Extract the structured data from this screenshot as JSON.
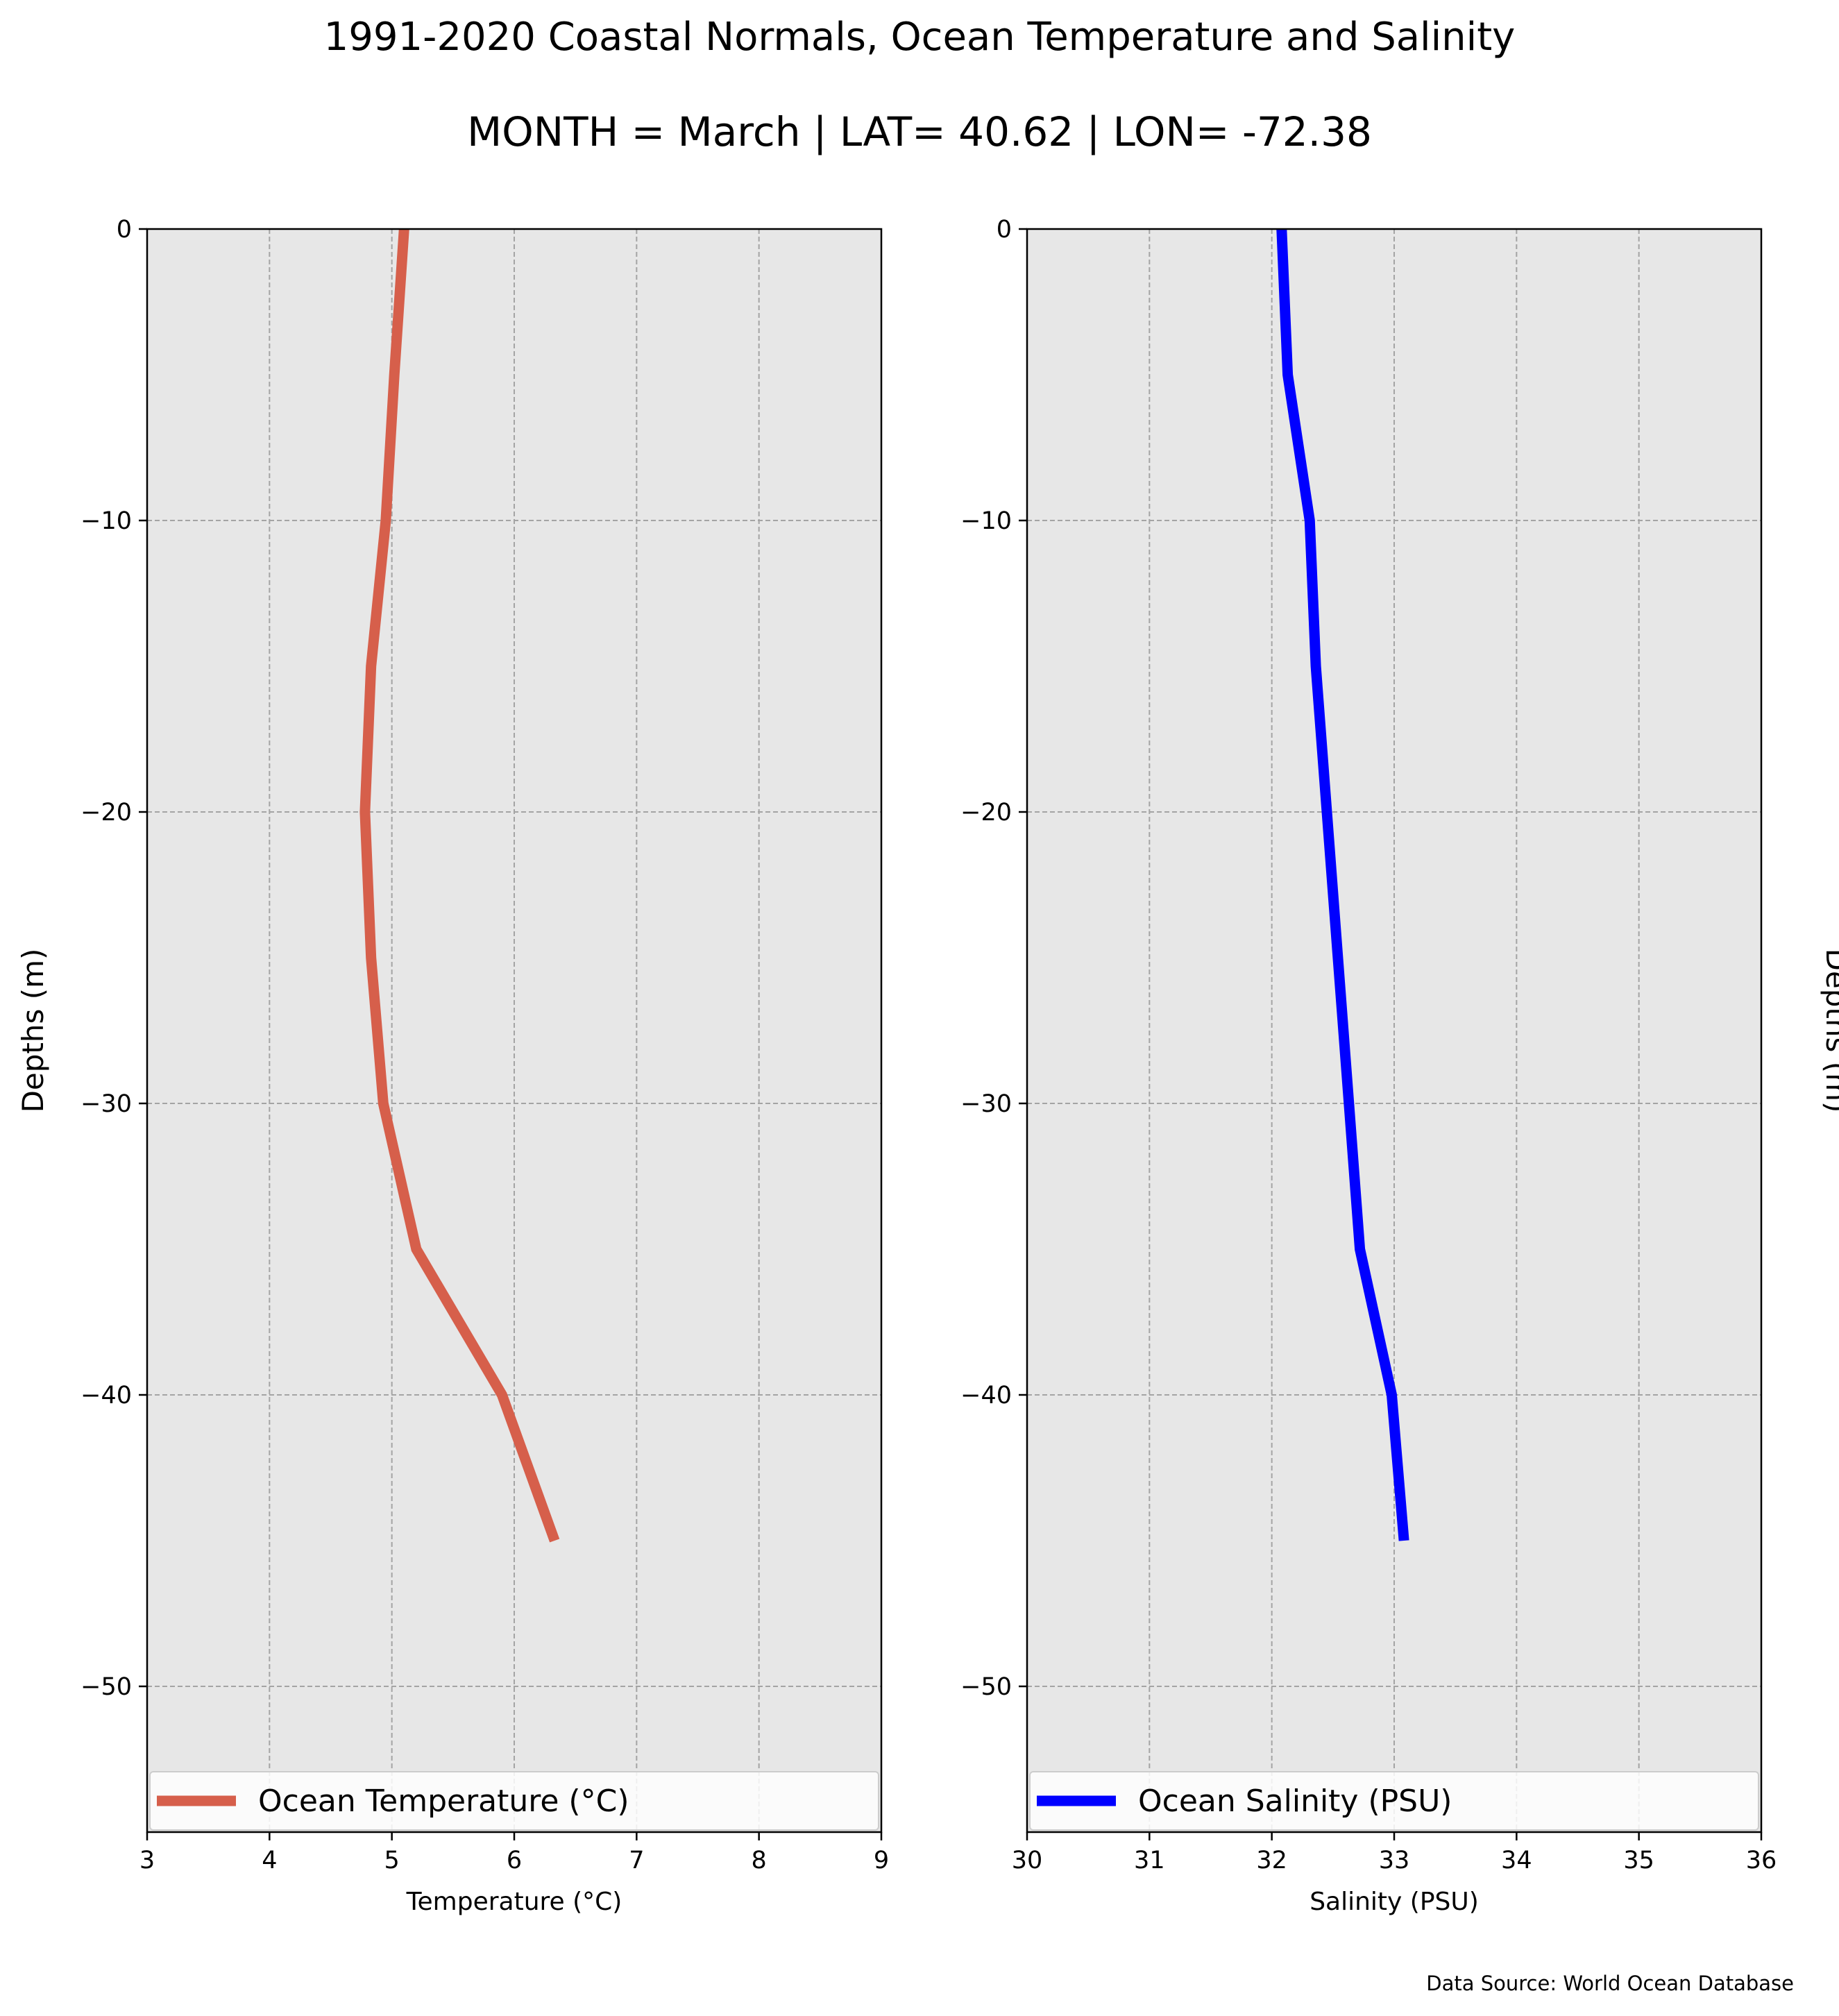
{
  "title": "1991-2020 Coastal Normals, Ocean Temperature and Salinity",
  "subtitle": "MONTH = March | LAT= 40.62 | LON= -72.38",
  "source_note": "Data Source: World Ocean Database",
  "chart_data": [
    {
      "type": "line",
      "xlabel": "Temperature (°C)",
      "ylabel": "Depths (m)",
      "xlim": [
        3,
        9
      ],
      "ylim": [
        -55,
        0
      ],
      "xticks": [
        3,
        4,
        5,
        6,
        7,
        8,
        9
      ],
      "yticks": [
        0,
        -10,
        -20,
        -30,
        -40,
        -50
      ],
      "grid": true,
      "legend_position": "lower-center",
      "ylabel_side": "left",
      "series": [
        {
          "name": "Ocean Temperature (°C)",
          "color": "#d65f4b",
          "x": [
            5.1,
            5.02,
            4.95,
            4.83,
            4.78,
            4.83,
            4.93,
            5.2,
            5.9,
            6.33
          ],
          "y": [
            0,
            -5,
            -10,
            -15,
            -20,
            -25,
            -30,
            -35,
            -40,
            -45
          ]
        }
      ]
    },
    {
      "type": "line",
      "xlabel": "Salinity (PSU)",
      "ylabel": "Depths (m)",
      "xlim": [
        30,
        36
      ],
      "ylim": [
        -55,
        0
      ],
      "xticks": [
        30,
        31,
        32,
        33,
        34,
        35,
        36
      ],
      "yticks": [
        0,
        -10,
        -20,
        -30,
        -40,
        -50
      ],
      "grid": true,
      "legend_position": "lower-center",
      "ylabel_side": "right",
      "series": [
        {
          "name": "Ocean Salinity (PSU)",
          "color": "#0000ff",
          "x": [
            32.08,
            32.13,
            32.31,
            32.36,
            32.45,
            32.54,
            32.63,
            32.72,
            32.98,
            33.08
          ],
          "y": [
            0,
            -5,
            -10,
            -15,
            -20,
            -25,
            -30,
            -35,
            -40,
            -45
          ]
        }
      ]
    }
  ]
}
